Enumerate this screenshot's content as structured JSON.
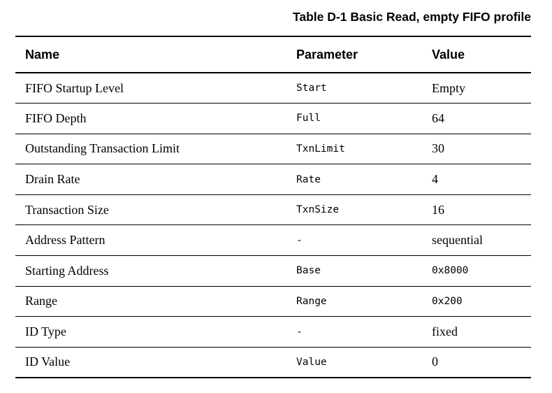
{
  "title": "Table D-1 Basic Read, empty FIFO profile",
  "headers": {
    "name": "Name",
    "parameter": "Parameter",
    "value": "Value"
  },
  "rows": [
    {
      "name": "FIFO Startup Level",
      "parameter": "Start",
      "value": "Empty",
      "value_mono": false
    },
    {
      "name": "FIFO Depth",
      "parameter": "Full",
      "value": "64",
      "value_mono": false
    },
    {
      "name": "Outstanding Transaction Limit",
      "parameter": "TxnLimit",
      "value": "30",
      "value_mono": false
    },
    {
      "name": "Drain Rate",
      "parameter": "Rate",
      "value": "4",
      "value_mono": false
    },
    {
      "name": "Transaction Size",
      "parameter": "TxnSize",
      "value": "16",
      "value_mono": false
    },
    {
      "name": "Address Pattern",
      "parameter": "-",
      "value": "sequential",
      "value_mono": false
    },
    {
      "name": "Starting Address",
      "parameter": "Base",
      "value": "0x8000",
      "value_mono": true
    },
    {
      "name": "Range",
      "parameter": "Range",
      "value": "0x200",
      "value_mono": true
    },
    {
      "name": "ID Type",
      "parameter": "-",
      "value": "fixed",
      "value_mono": false
    },
    {
      "name": "ID Value",
      "parameter": "Value",
      "value": "0",
      "value_mono": false
    }
  ]
}
